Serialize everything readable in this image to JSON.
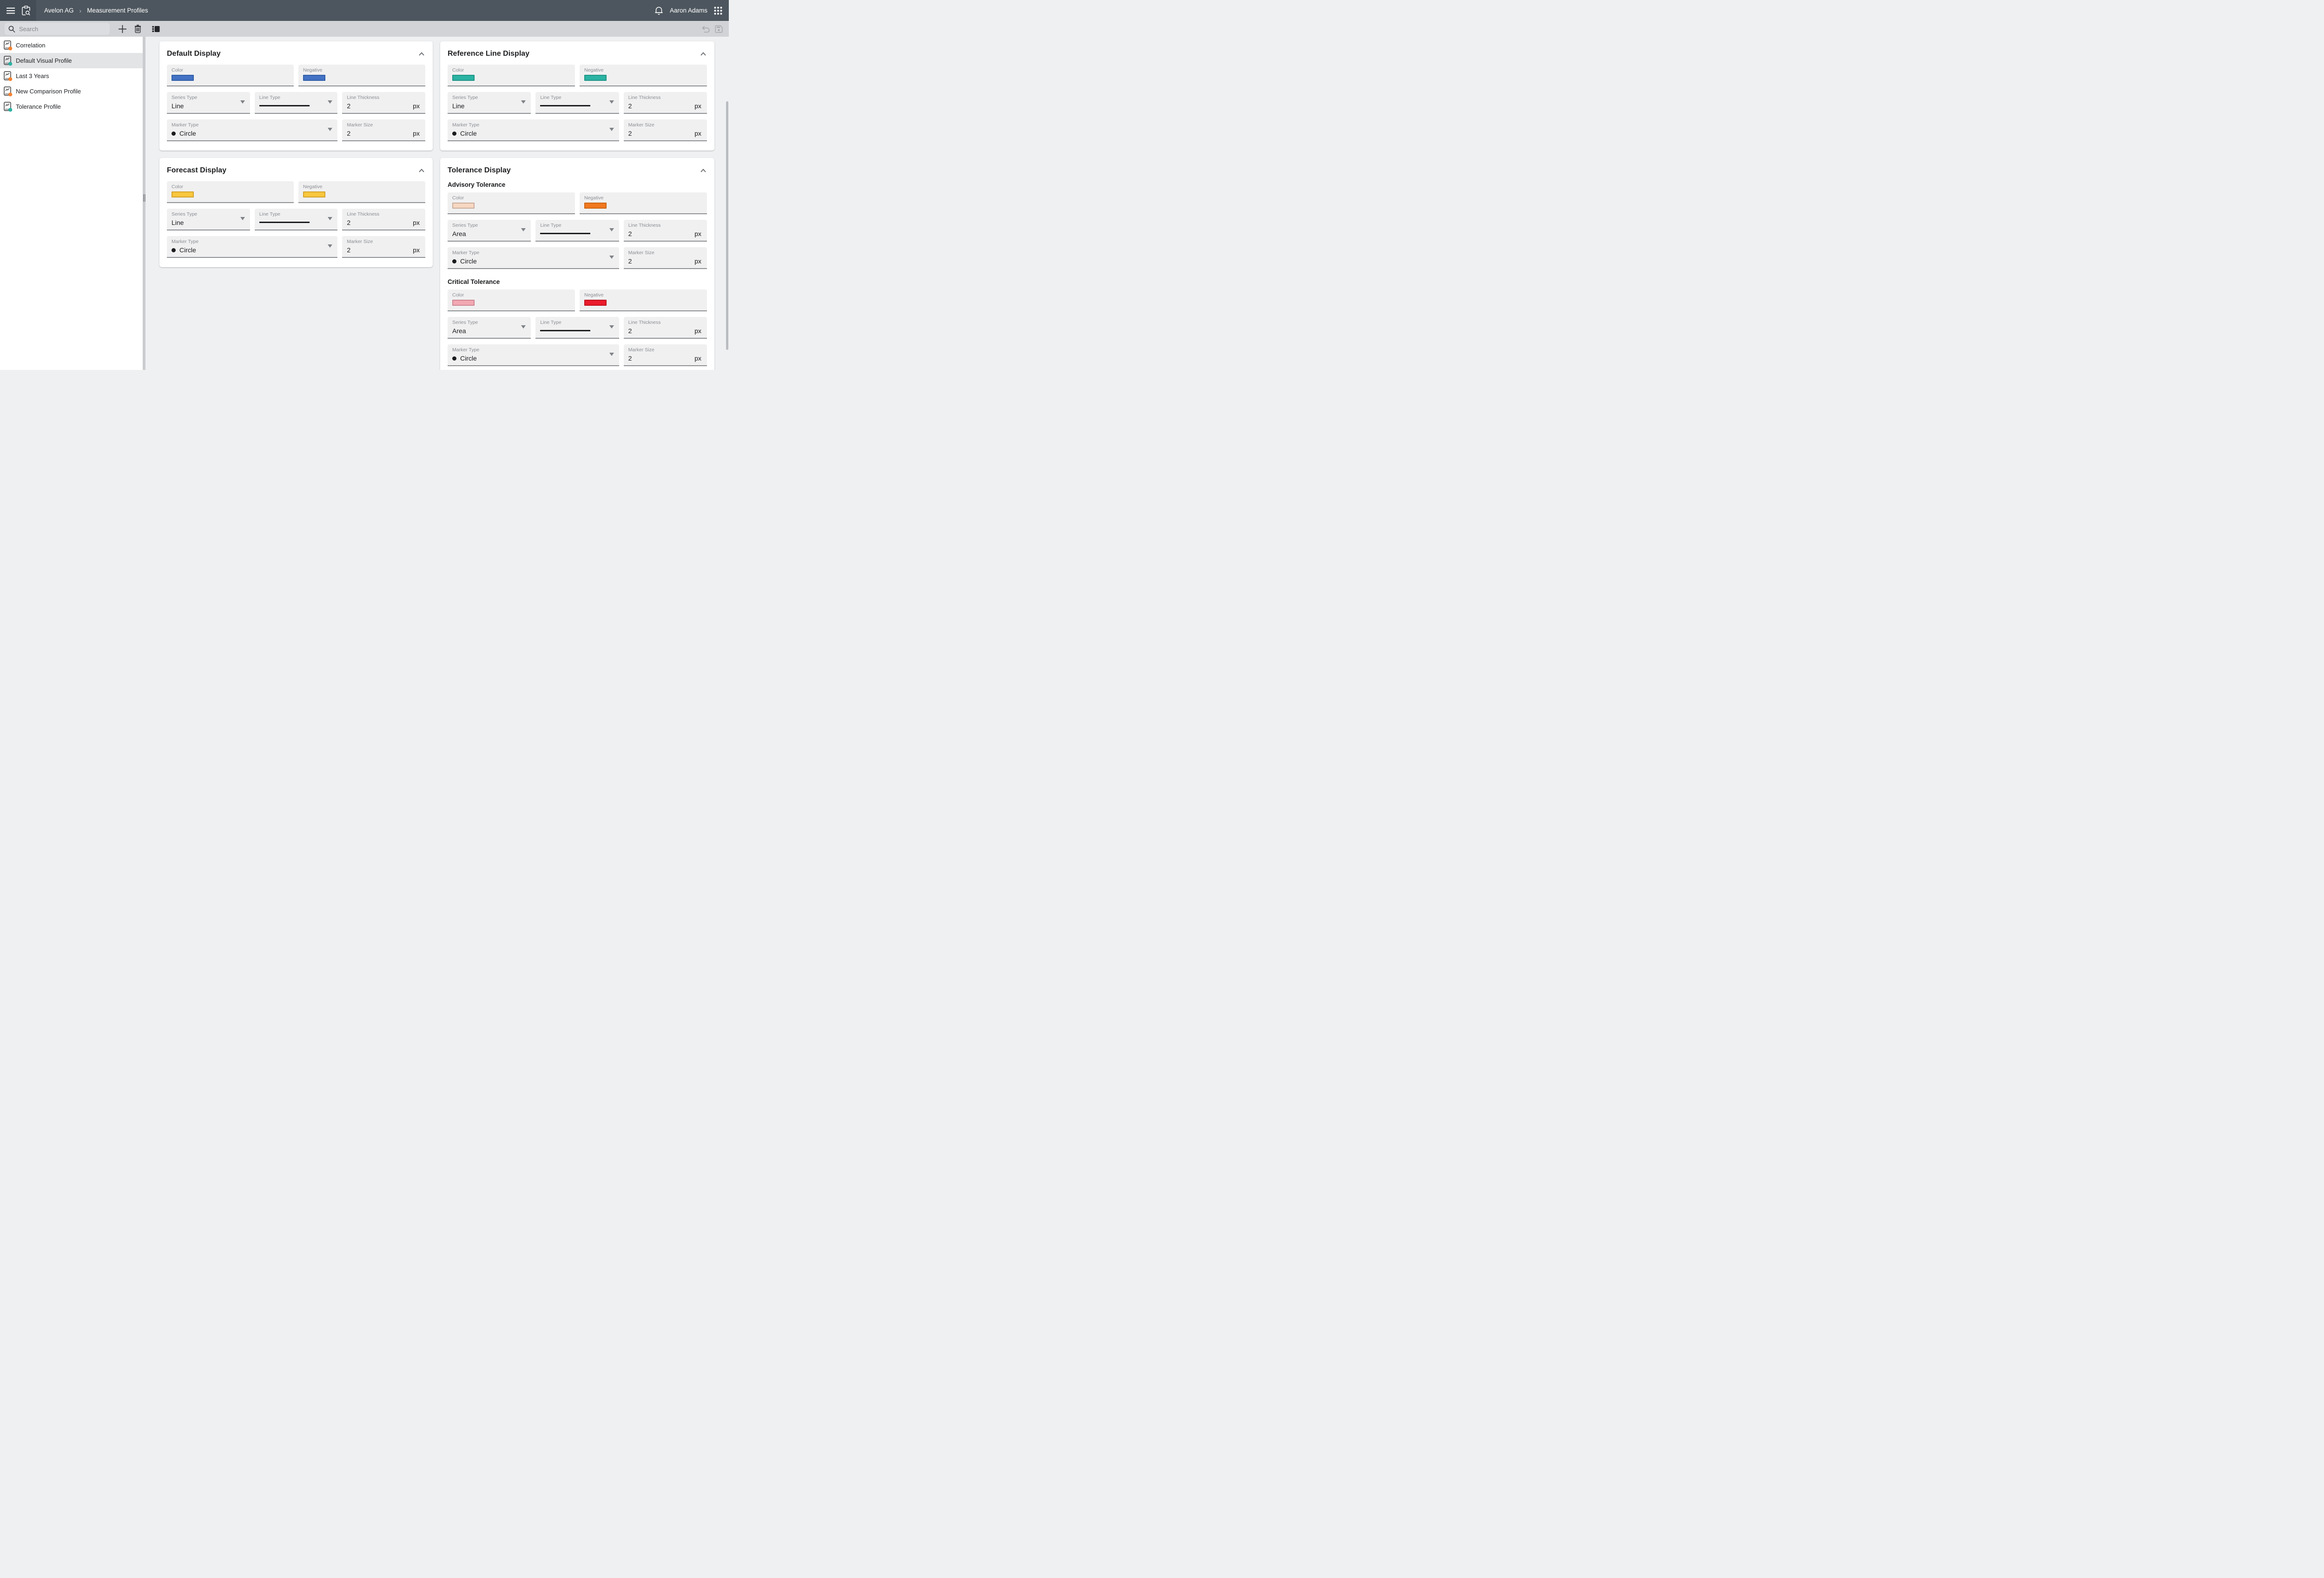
{
  "header": {
    "breadcrumb_root": "Avelon AG",
    "breadcrumb_separator": "›",
    "breadcrumb_current": "Measurement Profiles",
    "user_name": "Aaron Adams"
  },
  "toolbar": {
    "search_placeholder": "Search"
  },
  "sidebar": {
    "items": [
      {
        "label": "Correlation",
        "badge_color": "#F58232",
        "selected": false
      },
      {
        "label": "Default Visual Profile",
        "badge_color": "#2BB3A4",
        "selected": true
      },
      {
        "label": "Last 3 Years",
        "badge_color": "#F58232",
        "selected": false
      },
      {
        "label": "New Comparison Profile",
        "badge_color": "#F58232",
        "selected": false
      },
      {
        "label": "Tolerance Profile",
        "badge_color": "#2BB3A4",
        "selected": false
      }
    ]
  },
  "main": {
    "columns": [
      {
        "cards": [
          {
            "title": "Default Display",
            "sections": [
              {
                "heading": null,
                "rows": [
                  {
                    "fields": [
                      {
                        "type": "color",
                        "label": "Color",
                        "fill": "#4472C4",
                        "border": "#305EA8",
                        "span": 3
                      },
                      {
                        "type": "color",
                        "label": "Negative",
                        "fill": "#4472C4",
                        "border": "#305EA8",
                        "span": 3
                      }
                    ]
                  },
                  {
                    "fields": [
                      {
                        "type": "select",
                        "label": "Series Type",
                        "value": "Line",
                        "span": 2
                      },
                      {
                        "type": "line",
                        "label": "Line Type",
                        "line_style": "solid",
                        "span": 2
                      },
                      {
                        "type": "number",
                        "label": "Line Thickness",
                        "value": "2",
                        "unit": "px",
                        "span": 2
                      }
                    ]
                  },
                  {
                    "fields": [
                      {
                        "type": "marker",
                        "label": "Marker Type",
                        "value": "Circle",
                        "span": 4
                      },
                      {
                        "type": "number",
                        "label": "Marker Size",
                        "value": "2",
                        "unit": "px",
                        "span": 2
                      }
                    ]
                  }
                ]
              }
            ]
          },
          {
            "title": "Forecast Display",
            "sections": [
              {
                "heading": null,
                "rows": [
                  {
                    "fields": [
                      {
                        "type": "color",
                        "label": "Color",
                        "fill": "#F8C73E",
                        "border": "#D5A42B",
                        "span": 3
                      },
                      {
                        "type": "color",
                        "label": "Negative",
                        "fill": "#F8C73E",
                        "border": "#D5A42B",
                        "span": 3
                      }
                    ]
                  },
                  {
                    "fields": [
                      {
                        "type": "select",
                        "label": "Series Type",
                        "value": "Line",
                        "span": 2
                      },
                      {
                        "type": "line",
                        "label": "Line Type",
                        "line_style": "solid",
                        "span": 2
                      },
                      {
                        "type": "number",
                        "label": "Line Thickness",
                        "value": "2",
                        "unit": "px",
                        "span": 2
                      }
                    ]
                  },
                  {
                    "fields": [
                      {
                        "type": "marker",
                        "label": "Marker Type",
                        "value": "Circle",
                        "span": 4
                      },
                      {
                        "type": "number",
                        "label": "Marker Size",
                        "value": "2",
                        "unit": "px",
                        "span": 2
                      }
                    ]
                  }
                ]
              }
            ]
          }
        ]
      },
      {
        "cards": [
          {
            "title": "Reference Line Display",
            "sections": [
              {
                "heading": null,
                "rows": [
                  {
                    "fields": [
                      {
                        "type": "color",
                        "label": "Color",
                        "fill": "#2BB3A4",
                        "border": "#1E9586",
                        "span": 3
                      },
                      {
                        "type": "color",
                        "label": "Negative",
                        "fill": "#2BB3A4",
                        "border": "#1E9586",
                        "span": 3
                      }
                    ]
                  },
                  {
                    "fields": [
                      {
                        "type": "select",
                        "label": "Series Type",
                        "value": "Line",
                        "span": 2
                      },
                      {
                        "type": "line",
                        "label": "Line Type",
                        "line_style": "solid",
                        "span": 2
                      },
                      {
                        "type": "number",
                        "label": "Line Thickness",
                        "value": "2",
                        "unit": "px",
                        "span": 2
                      }
                    ]
                  },
                  {
                    "fields": [
                      {
                        "type": "marker",
                        "label": "Marker Type",
                        "value": "Circle",
                        "span": 4
                      },
                      {
                        "type": "number",
                        "label": "Marker Size",
                        "value": "2",
                        "unit": "px",
                        "span": 2
                      }
                    ]
                  }
                ]
              }
            ]
          },
          {
            "title": "Tolerance Display",
            "sections": [
              {
                "heading": "Advisory Tolerance",
                "rows": [
                  {
                    "fields": [
                      {
                        "type": "color",
                        "label": "Color",
                        "fill": "#F7D7C1",
                        "border": "#CBAE9C",
                        "span": 3
                      },
                      {
                        "type": "color",
                        "label": "Negative",
                        "fill": "#F0791F",
                        "border": "#CE650F",
                        "span": 3
                      }
                    ]
                  },
                  {
                    "fields": [
                      {
                        "type": "select",
                        "label": "Series Type",
                        "value": "Area",
                        "span": 2
                      },
                      {
                        "type": "line",
                        "label": "Line Type",
                        "line_style": "solid",
                        "span": 2
                      },
                      {
                        "type": "number",
                        "label": "Line Thickness",
                        "value": "2",
                        "unit": "px",
                        "span": 2
                      }
                    ]
                  },
                  {
                    "fields": [
                      {
                        "type": "marker",
                        "label": "Marker Type",
                        "value": "Circle",
                        "span": 4
                      },
                      {
                        "type": "number",
                        "label": "Marker Size",
                        "value": "2",
                        "unit": "px",
                        "span": 2
                      }
                    ]
                  }
                ]
              },
              {
                "heading": "Critical Tolerance",
                "rows": [
                  {
                    "fields": [
                      {
                        "type": "color",
                        "label": "Color",
                        "fill": "#F2A8B2",
                        "border": "#CF8792",
                        "span": 3
                      },
                      {
                        "type": "color",
                        "label": "Negative",
                        "fill": "#EA1B2D",
                        "border": "#C2131F",
                        "span": 3
                      }
                    ]
                  },
                  {
                    "fields": [
                      {
                        "type": "select",
                        "label": "Series Type",
                        "value": "Area",
                        "span": 2
                      },
                      {
                        "type": "line",
                        "label": "Line Type",
                        "line_style": "solid",
                        "span": 2
                      },
                      {
                        "type": "number",
                        "label": "Line Thickness",
                        "value": "2",
                        "unit": "px",
                        "span": 2
                      }
                    ]
                  },
                  {
                    "fields": [
                      {
                        "type": "marker",
                        "label": "Marker Type",
                        "value": "Circle",
                        "span": 4
                      },
                      {
                        "type": "number",
                        "label": "Marker Size",
                        "value": "2",
                        "unit": "px",
                        "span": 2
                      }
                    ]
                  }
                ]
              }
            ]
          }
        ]
      }
    ]
  }
}
